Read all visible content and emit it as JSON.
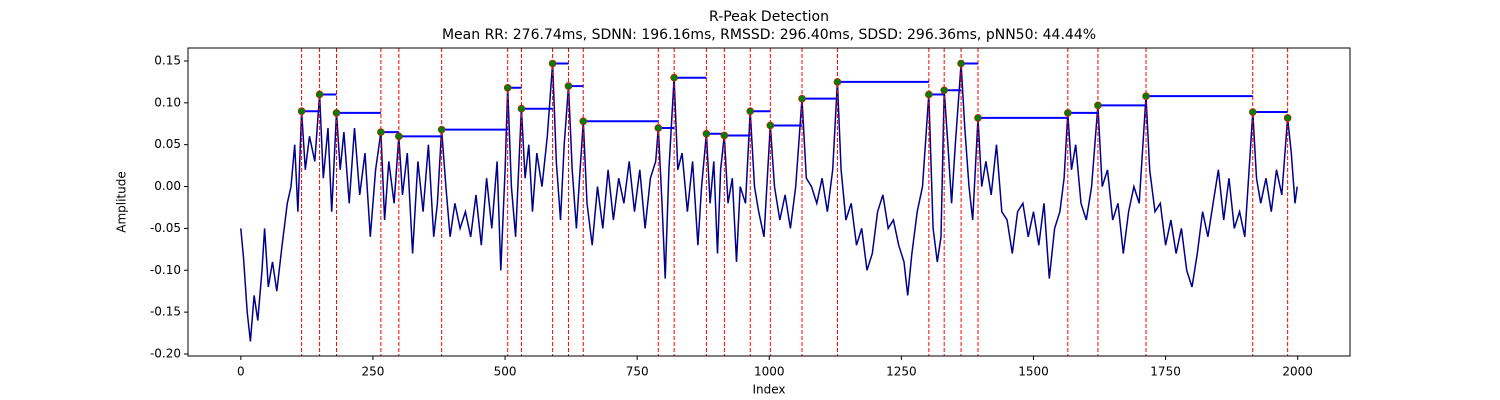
{
  "chart_data": {
    "type": "line",
    "title": "R-Peak Detection",
    "subtitle": "Mean RR: 276.74ms, SDNN: 196.16ms, RMSSD: 296.40ms, SDSD: 296.36ms, pNN50: 44.44%",
    "xlabel": "Index",
    "ylabel": "Amplitude",
    "xlim": [
      -100,
      2099
    ],
    "ylim": [
      -0.2024,
      0.1655
    ],
    "xticks": [
      0,
      250,
      500,
      750,
      1000,
      1250,
      1500,
      1750,
      2000
    ],
    "yticks": [
      {
        "value": -0.2,
        "label": "-0.20"
      },
      -0.15,
      {
        "value": -0.1,
        "label": "-0.10"
      },
      -0.05,
      {
        "value": 0,
        "label": "0.00"
      },
      0.05,
      {
        "value": 0.1,
        "label": "0.10"
      },
      0.15
    ],
    "series": [
      {
        "color": "#00008b",
        "x": [
          0,
          5,
          12,
          18,
          25,
          32,
          40,
          45,
          52,
          60,
          68,
          78,
          88,
          95,
          102,
          108,
          115,
          122,
          130,
          140,
          149,
          156,
          165,
          172,
          181,
          188,
          195,
          205,
          215,
          225,
          235,
          245,
          255,
          265,
          272,
          280,
          290,
          299,
          306,
          315,
          325,
          335,
          345,
          355,
          365,
          372,
          380,
          388,
          396,
          405,
          415,
          425,
          435,
          445,
          455,
          465,
          475,
          485,
          492,
          500,
          505,
          512,
          520,
          531,
          538,
          545,
          552,
          560,
          570,
          580,
          590,
          597,
          605,
          612,
          620,
          627,
          635,
          642,
          648,
          655,
          665,
          675,
          685,
          695,
          705,
          715,
          725,
          735,
          745,
          755,
          765,
          775,
          785,
          790,
          797,
          803,
          810,
          820,
          827,
          835,
          845,
          855,
          865,
          872,
          881,
          888,
          895,
          902,
          908,
          915,
          922,
          930,
          938,
          945,
          955,
          964,
          972,
          980,
          990,
          1002,
          1010,
          1020,
          1030,
          1040,
          1050,
          1062,
          1070,
          1080,
          1090,
          1100,
          1110,
          1120,
          1129,
          1136,
          1145,
          1155,
          1165,
          1175,
          1185,
          1195,
          1205,
          1215,
          1225,
          1235,
          1245,
          1255,
          1262,
          1270,
          1280,
          1290,
          1302,
          1310,
          1318,
          1325,
          1331,
          1338,
          1345,
          1352,
          1363,
          1370,
          1378,
          1385,
          1395,
          1402,
          1410,
          1420,
          1430,
          1440,
          1450,
          1460,
          1470,
          1480,
          1490,
          1500,
          1510,
          1520,
          1530,
          1540,
          1550,
          1558,
          1565,
          1572,
          1580,
          1590,
          1600,
          1610,
          1622,
          1630,
          1640,
          1650,
          1660,
          1670,
          1680,
          1690,
          1700,
          1713,
          1720,
          1730,
          1740,
          1750,
          1760,
          1770,
          1780,
          1790,
          1800,
          1810,
          1820,
          1830,
          1840,
          1850,
          1860,
          1870,
          1880,
          1890,
          1900,
          1908,
          1915,
          1922,
          1930,
          1940,
          1950,
          1960,
          1970,
          1981,
          1988,
          1995,
          1999
        ],
        "values": [
          -0.05,
          -0.085,
          -0.15,
          -0.185,
          -0.13,
          -0.16,
          -0.1,
          -0.05,
          -0.12,
          -0.09,
          -0.125,
          -0.07,
          -0.02,
          0.0,
          0.05,
          -0.03,
          0.09,
          0.02,
          0.06,
          0.03,
          0.11,
          0.01,
          0.07,
          -0.03,
          0.088,
          0.02,
          0.065,
          -0.02,
          0.07,
          -0.01,
          0.04,
          -0.06,
          0.02,
          0.065,
          -0.04,
          0.03,
          -0.02,
          0.06,
          -0.01,
          0.04,
          -0.08,
          0.03,
          -0.03,
          0.05,
          -0.06,
          -0.02,
          0.068,
          0.0,
          -0.06,
          -0.02,
          -0.05,
          -0.03,
          -0.06,
          -0.01,
          -0.07,
          0.01,
          -0.05,
          0.03,
          -0.1,
          0.02,
          0.118,
          0.0,
          -0.06,
          0.093,
          0.01,
          0.05,
          -0.03,
          0.04,
          0.0,
          0.06,
          0.147,
          0.03,
          -0.04,
          0.05,
          0.12,
          0.02,
          -0.05,
          0.02,
          0.078,
          -0.02,
          -0.07,
          0.0,
          -0.05,
          0.02,
          -0.04,
          0.01,
          -0.02,
          0.03,
          -0.03,
          0.02,
          -0.05,
          0.01,
          0.03,
          0.07,
          -0.02,
          -0.11,
          0.02,
          0.13,
          0.02,
          0.04,
          -0.03,
          0.03,
          -0.07,
          0.0,
          0.063,
          -0.02,
          0.03,
          -0.08,
          0.02,
          0.061,
          -0.02,
          0.01,
          -0.09,
          0.0,
          -0.02,
          0.09,
          0.0,
          -0.03,
          -0.06,
          0.073,
          0.0,
          -0.04,
          -0.01,
          -0.05,
          0.0,
          0.105,
          0.01,
          0.0,
          -0.02,
          0.01,
          -0.03,
          0.02,
          0.125,
          0.02,
          -0.04,
          -0.02,
          -0.07,
          -0.05,
          -0.1,
          -0.08,
          -0.03,
          -0.01,
          -0.05,
          -0.04,
          -0.07,
          -0.09,
          -0.13,
          -0.08,
          -0.03,
          0.0,
          0.11,
          -0.05,
          -0.09,
          -0.06,
          0.115,
          0.05,
          -0.02,
          0.05,
          0.147,
          0.07,
          0.0,
          -0.04,
          0.082,
          0.0,
          0.03,
          -0.01,
          0.05,
          -0.03,
          -0.04,
          -0.08,
          -0.03,
          -0.02,
          -0.06,
          -0.03,
          -0.07,
          -0.02,
          -0.11,
          -0.05,
          -0.03,
          0.01,
          0.088,
          0.02,
          0.05,
          -0.02,
          -0.04,
          0.0,
          0.097,
          0.0,
          0.02,
          -0.04,
          -0.02,
          -0.08,
          -0.03,
          0.0,
          -0.02,
          0.108,
          0.02,
          -0.03,
          -0.02,
          -0.07,
          -0.04,
          -0.08,
          -0.05,
          -0.1,
          -0.12,
          -0.08,
          -0.03,
          -0.06,
          -0.02,
          0.02,
          -0.04,
          0.01,
          -0.05,
          -0.03,
          -0.06,
          0.02,
          0.089,
          0.01,
          -0.02,
          0.01,
          -0.03,
          0.02,
          -0.01,
          0.082,
          0.04,
          -0.02,
          0.0
        ]
      }
    ],
    "peaks": {
      "color": "green",
      "line_color": "red",
      "rr_color": "blue",
      "x": [
        115,
        149,
        181,
        265,
        299,
        380,
        505,
        531,
        590,
        620,
        648,
        790,
        820,
        881,
        915,
        964,
        1002,
        1062,
        1129,
        1302,
        1331,
        1363,
        1395,
        1565,
        1622,
        1713,
        1915,
        1981
      ],
      "values": [
        0.09,
        0.11,
        0.088,
        0.065,
        0.06,
        0.068,
        0.118,
        0.093,
        0.147,
        0.12,
        0.078,
        0.07,
        0.13,
        0.063,
        0.061,
        0.09,
        0.073,
        0.105,
        0.125,
        0.11,
        0.115,
        0.147,
        0.082,
        0.088,
        0.097,
        0.108,
        0.089,
        0.082
      ]
    }
  }
}
